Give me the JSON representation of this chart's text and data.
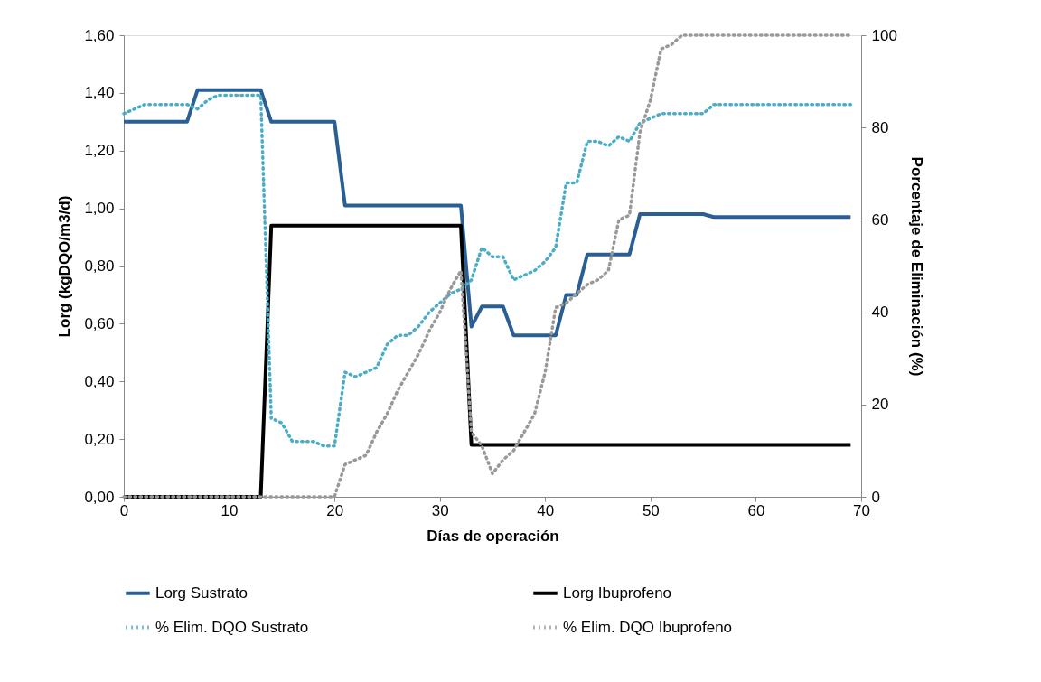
{
  "chart_data": {
    "type": "line",
    "xlabel": "Días de operación",
    "ylabel": "Lorg (kgDQO/m3/d)",
    "y2label": "Porcentaje de Eliminación (%)",
    "x": [
      0,
      1,
      2,
      3,
      4,
      5,
      6,
      7,
      8,
      9,
      10,
      11,
      12,
      13,
      14,
      15,
      16,
      17,
      18,
      19,
      20,
      21,
      22,
      23,
      24,
      25,
      26,
      27,
      28,
      29,
      30,
      31,
      32,
      33,
      34,
      35,
      36,
      37,
      38,
      39,
      40,
      41,
      42,
      43,
      44,
      45,
      46,
      47,
      48,
      49,
      50,
      51,
      52,
      53,
      54,
      55,
      56,
      57,
      58,
      59,
      60,
      61,
      62,
      63,
      64,
      65,
      66,
      67,
      68,
      69
    ],
    "xlim": [
      0,
      70
    ],
    "xticks": [
      0,
      10,
      20,
      30,
      40,
      50,
      60,
      70
    ],
    "ylim": [
      0,
      1.6
    ],
    "yticks": [
      {
        "value": 0,
        "label": "0,00"
      },
      {
        "value": 0.2,
        "label": "0,20"
      },
      {
        "value": 0.4,
        "label": "0,40"
      },
      {
        "value": 0.6,
        "label": "0,60"
      },
      {
        "value": 0.8,
        "label": "0,80"
      },
      {
        "value": 1.0,
        "label": "1,00"
      },
      {
        "value": 1.2,
        "label": "1,20"
      },
      {
        "value": 1.4,
        "label": "1,40"
      },
      {
        "value": 1.6,
        "label": "1,60"
      }
    ],
    "y2lim": [
      0,
      100
    ],
    "y2ticks": [
      0,
      20,
      40,
      60,
      80,
      100
    ],
    "grid": false,
    "legend": "bottom",
    "marker": "none",
    "series": [
      {
        "name": "Lorg Sustrato",
        "color": "#2a5f96",
        "line_style": "solid",
        "values": [
          1.3,
          1.3,
          1.3,
          1.3,
          1.3,
          1.3,
          1.3,
          1.41,
          1.41,
          1.41,
          1.41,
          1.41,
          1.41,
          1.41,
          1.3,
          1.3,
          1.3,
          1.3,
          1.3,
          1.3,
          1.3,
          1.01,
          1.01,
          1.01,
          1.01,
          1.01,
          1.01,
          1.01,
          1.01,
          1.01,
          1.01,
          1.01,
          1.01,
          0.59,
          0.66,
          0.66,
          0.66,
          0.56,
          0.56,
          0.56,
          0.56,
          0.56,
          0.7,
          0.7,
          0.84,
          0.84,
          0.84,
          0.84,
          0.84,
          0.98,
          0.98,
          0.98,
          0.98,
          0.98,
          0.98,
          0.98,
          0.97,
          0.97,
          0.97,
          0.97,
          0.97,
          0.97,
          0.97,
          0.97,
          0.97,
          0.97,
          0.97,
          0.97,
          0.97,
          0.97
        ]
      },
      {
        "name": "Lorg Ibuprofeno",
        "color": "#000000",
        "line_style": "solid",
        "values": [
          0,
          0,
          0,
          0,
          0,
          0,
          0,
          0,
          0,
          0,
          0,
          0,
          0,
          0,
          0.94,
          0.94,
          0.94,
          0.94,
          0.94,
          0.94,
          0.94,
          0.94,
          0.94,
          0.94,
          0.94,
          0.94,
          0.94,
          0.94,
          0.94,
          0.94,
          0.94,
          0.94,
          0.94,
          0.18,
          0.18,
          0.18,
          0.18,
          0.18,
          0.18,
          0.18,
          0.18,
          0.18,
          0.18,
          0.18,
          0.18,
          0.18,
          0.18,
          0.18,
          0.18,
          0.18,
          0.18,
          0.18,
          0.18,
          0.18,
          0.18,
          0.18,
          0.18,
          0.18,
          0.18,
          0.18,
          0.18,
          0.18,
          0.18,
          0.18,
          0.18,
          0.18,
          0.18,
          0.18,
          0.18,
          0.18
        ]
      },
      {
        "name": "% Elim. DQO Sustrato",
        "color": "#4bacc6",
        "line_style": "dotted",
        "axis": "y2",
        "values": [
          83,
          84,
          85,
          85,
          85,
          85,
          85,
          84,
          86,
          87,
          87,
          87,
          87,
          87,
          17,
          16,
          12,
          12,
          12,
          11,
          11,
          27,
          26,
          27,
          28,
          33,
          35,
          35,
          37,
          40,
          42,
          44,
          45,
          47,
          54,
          52,
          52,
          47,
          48,
          49,
          51,
          54,
          68,
          68,
          77,
          77,
          76,
          78,
          77,
          81,
          82,
          83,
          83,
          83,
          83,
          83,
          85,
          85,
          85,
          85,
          85,
          85,
          85,
          85,
          85,
          85,
          85,
          85,
          85,
          85
        ]
      },
      {
        "name": "% Elim. DQO Ibuprofeno",
        "color": "#999999",
        "line_style": "dotted",
        "axis": "y2",
        "values": [
          0,
          0,
          0,
          0,
          0,
          0,
          0,
          0,
          0,
          0,
          0,
          0,
          0,
          0,
          0,
          0,
          0,
          0,
          0,
          0,
          0,
          7,
          8,
          9,
          14,
          18,
          23,
          27,
          31,
          36,
          40,
          45,
          49,
          14,
          11,
          5,
          8,
          10,
          14,
          18,
          27,
          41,
          42,
          44,
          46,
          47,
          49,
          60,
          61,
          79,
          86,
          97,
          98,
          100,
          100,
          100,
          100,
          100,
          100,
          100,
          100,
          100,
          100,
          100,
          100,
          100,
          100,
          100,
          100,
          100
        ]
      }
    ]
  }
}
